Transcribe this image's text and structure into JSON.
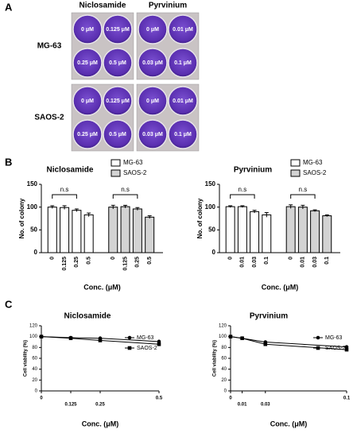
{
  "panel_labels": [
    "A",
    "B",
    "C"
  ],
  "plate": {
    "columns": [
      "Niclosamide",
      "Pyrvinium"
    ],
    "rows": [
      "MG-63",
      "SAOS-2"
    ],
    "wells": [
      [
        [
          "0 μM",
          "0.125 μM",
          "0.25 μM",
          "0.5 μM"
        ],
        [
          "0 μM",
          "0.01 μM",
          "0.03 μM",
          "0.1 μM"
        ]
      ],
      [
        [
          "0 μM",
          "0.125 μM",
          "0.25 μM",
          "0.5 μM"
        ],
        [
          "0 μM",
          "0.01 μM",
          "0.03 μM",
          "0.1 μM"
        ]
      ]
    ]
  },
  "chart_data": [
    {
      "type": "bar",
      "title": "Niclosamide",
      "ylabel": "No. of colony",
      "xlabel": "Conc. (μM)",
      "categories": [
        "0",
        "0.125",
        "0.25",
        "0.5"
      ],
      "series": [
        {
          "name": "MG-63",
          "color": "#ffffff",
          "values": [
            100,
            99,
            93,
            83
          ],
          "errors": [
            3,
            4,
            3,
            4
          ]
        },
        {
          "name": "SAOS-2",
          "color": "#d3d3d3",
          "values": [
            100,
            101,
            96,
            78
          ],
          "errors": [
            4,
            3,
            3,
            3
          ]
        }
      ],
      "annotations": [
        "n.s",
        "n.s"
      ],
      "ylim": [
        0,
        150
      ],
      "yticks": [
        0,
        50,
        100,
        150
      ],
      "legend": "upper right"
    },
    {
      "type": "bar",
      "title": "Pyrvinium",
      "ylabel": "No. of colony",
      "xlabel": "Conc. (μM)",
      "categories": [
        "0",
        "0.01",
        "0.03",
        "0.1"
      ],
      "series": [
        {
          "name": "MG-63",
          "color": "#ffffff",
          "values": [
            101,
            101,
            90,
            83
          ],
          "errors": [
            2,
            2,
            3,
            5
          ]
        },
        {
          "name": "SAOS-2",
          "color": "#d3d3d3",
          "values": [
            101,
            100,
            92,
            81
          ],
          "errors": [
            4,
            4,
            2,
            2
          ]
        }
      ],
      "annotations": [
        "n.s",
        "n.s"
      ],
      "ylim": [
        0,
        150
      ],
      "yticks": [
        0,
        50,
        100,
        150
      ],
      "legend": "upper right"
    },
    {
      "type": "line",
      "title": "Niclosamide",
      "ylabel": "Cell viability (%)",
      "xlabel": "Conc. (μM)",
      "x": [
        0,
        0.125,
        0.25,
        0.5
      ],
      "series": [
        {
          "name": "MG-63",
          "color": "#000000",
          "marker": "circle",
          "values": [
            100,
            98,
            97,
            91
          ]
        },
        {
          "name": "SAOS-2",
          "color": "#000000",
          "marker": "square",
          "values": [
            100,
            97,
            93,
            86
          ]
        }
      ],
      "xlim": [
        0,
        0.5
      ],
      "xticks": [
        0,
        0.125,
        0.25,
        0.5
      ],
      "ylim": [
        0,
        120
      ],
      "yticks": [
        0,
        20,
        40,
        60,
        80,
        100,
        120
      ],
      "legend": "upper right"
    },
    {
      "type": "line",
      "title": "Pyrvinium",
      "ylabel": "Cell viability (%)",
      "xlabel": "Conc. (μM)",
      "x": [
        0,
        0.01,
        0.03,
        0.1
      ],
      "series": [
        {
          "name": "MG-63",
          "color": "#000000",
          "marker": "circle",
          "values": [
            100,
            97,
            90,
            81
          ]
        },
        {
          "name": "SAOS-2",
          "color": "#000000",
          "marker": "square",
          "values": [
            100,
            97,
            86,
            76
          ]
        }
      ],
      "xlim": [
        0,
        0.1
      ],
      "xticks": [
        0,
        0.01,
        0.03,
        0.1
      ],
      "ylim": [
        0,
        120
      ],
      "yticks": [
        0,
        20,
        40,
        60,
        80,
        100,
        120
      ],
      "legend": "upper right"
    }
  ]
}
